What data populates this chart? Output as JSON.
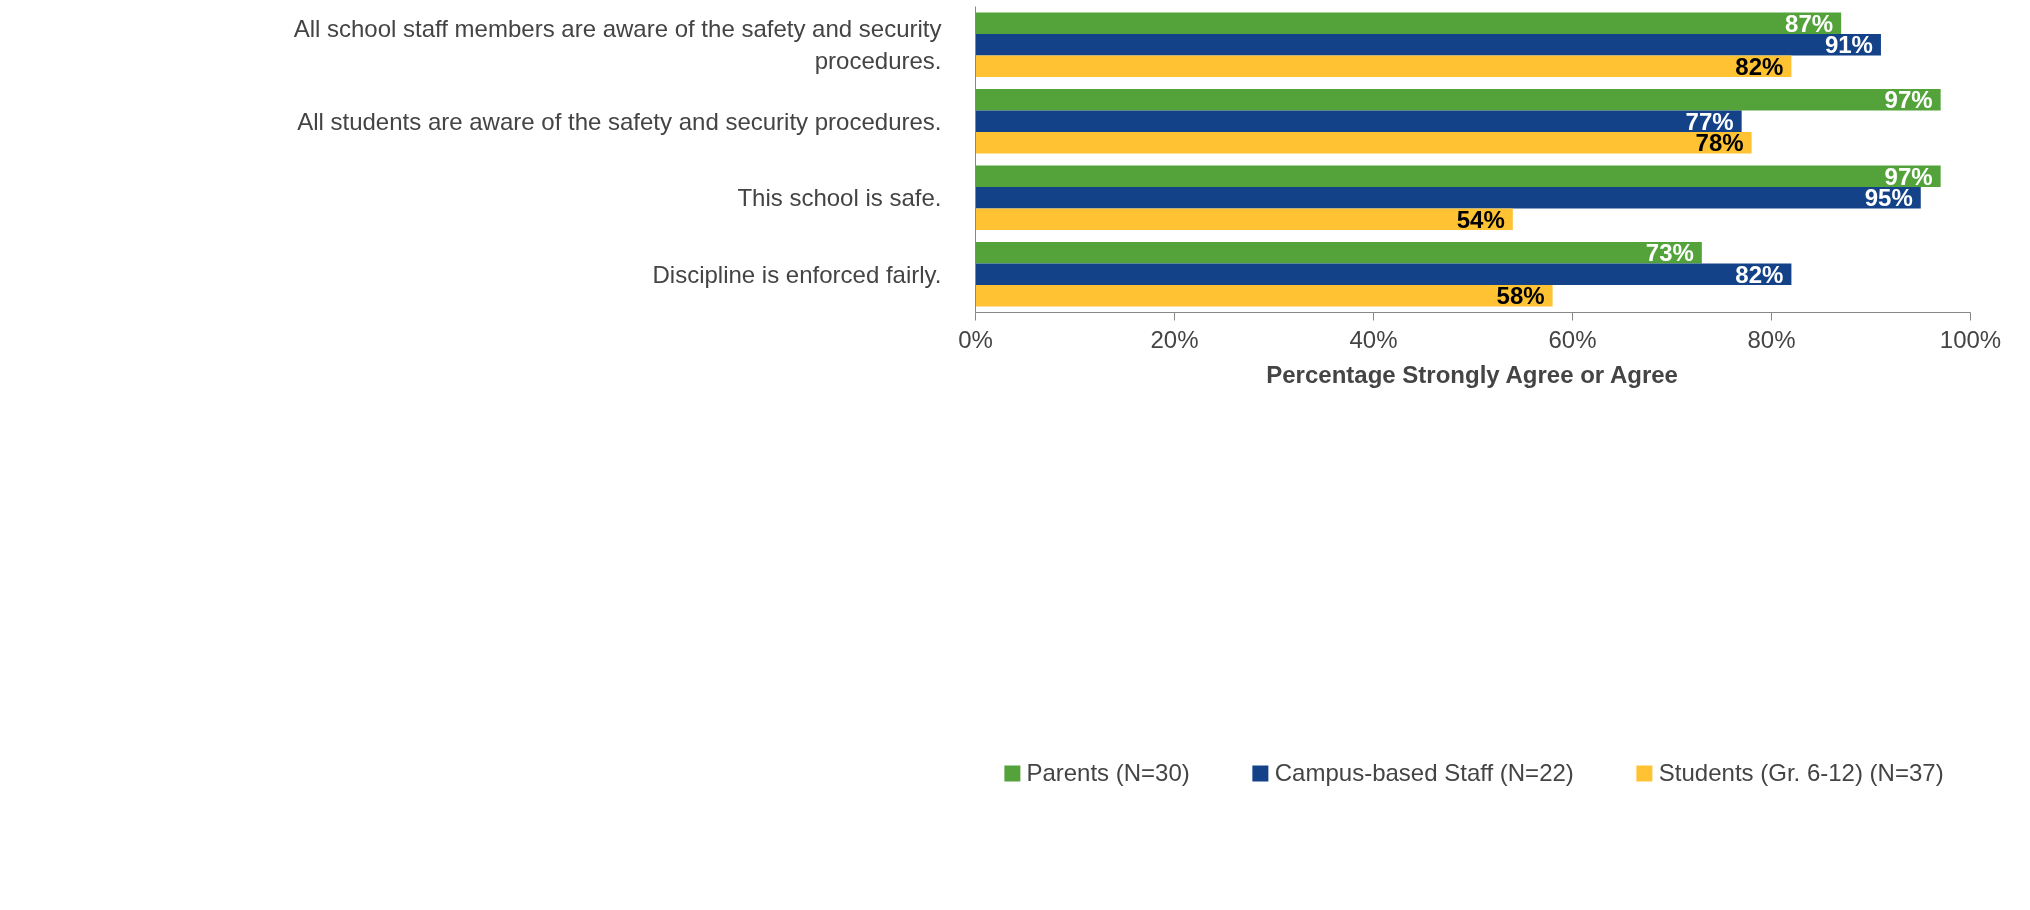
{
  "chart_data": {
    "type": "bar",
    "orientation": "horizontal",
    "categories": [
      "All school staff members are aware of the safety and security procedures.",
      "All students are aware of the safety and security procedures.",
      "This school is safe.",
      "Discipline is enforced fairly."
    ],
    "series": [
      {
        "name": "Parents (N=30)",
        "color": "#54a33a",
        "values": [
          87,
          97,
          97,
          73
        ]
      },
      {
        "name": "Campus-based Staff (N=22)",
        "color": "#134289",
        "values": [
          91,
          77,
          95,
          82
        ]
      },
      {
        "name": "Students (Gr. 6-12) (N=37)",
        "color": "#fec232",
        "values": [
          82,
          78,
          54,
          58
        ]
      }
    ],
    "xlabel": "Percentage Strongly Agree or Agree",
    "xlim": [
      0,
      100
    ],
    "xticks": [
      {
        "value": 0,
        "label": "0%"
      },
      {
        "value": 20,
        "label": "20%"
      },
      {
        "value": 40,
        "label": "40%"
      },
      {
        "value": 60,
        "label": "60%"
      },
      {
        "value": 80,
        "label": "80%"
      },
      {
        "value": 100,
        "label": "100%"
      }
    ],
    "value_labels": [
      [
        "87%",
        "97%",
        "97%",
        "73%"
      ],
      [
        "91%",
        "77%",
        "95%",
        "82%"
      ],
      [
        "82%",
        "78%",
        "54%",
        "58%"
      ]
    ],
    "grid": false,
    "legend": "bottom"
  }
}
